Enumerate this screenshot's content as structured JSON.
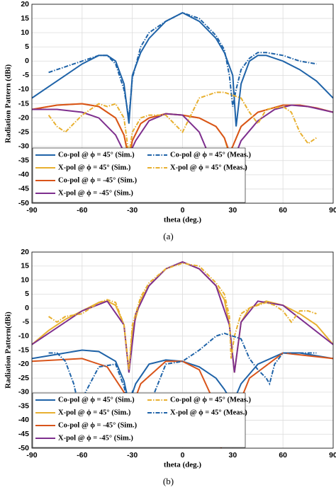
{
  "chart_data": [
    {
      "type": "line",
      "panel_label": "(a)",
      "x_label": "theta (deg.)",
      "y_label": "Radiation Pattern (dBi)",
      "xlim": [
        -90,
        90
      ],
      "xticks": [
        -90,
        -60,
        -30,
        0,
        30,
        60,
        90
      ],
      "ylim": [
        -50,
        20
      ],
      "yticks": [
        -50,
        -45,
        -40,
        -35,
        -30,
        -25,
        -20,
        -15,
        -10,
        -5,
        0,
        5,
        10,
        15,
        20
      ],
      "grid": true,
      "legend": "lower left",
      "series": [
        {
          "name": "Co-pol @ ϕ = 45° (Sim.)",
          "color": "#1f63a8",
          "linestyle": "solid",
          "x": [
            -90,
            -80,
            -70,
            -60,
            -50,
            -45,
            -40,
            -35,
            -32,
            -30,
            -25,
            -20,
            -10,
            0,
            10,
            20,
            25,
            30,
            32,
            35,
            40,
            45,
            50,
            60,
            70,
            80,
            90
          ],
          "values": [
            -13,
            -9,
            -5,
            -1,
            2,
            2,
            0,
            -8,
            -22,
            -5,
            3,
            8,
            14,
            17,
            14,
            8,
            3,
            -5,
            -23,
            -8,
            0,
            2,
            2,
            0,
            -3,
            -7,
            -13
          ]
        },
        {
          "name": "X-pol @ ϕ = 45° (Sim.)",
          "color": "#e8b030",
          "linestyle": "solid",
          "x": [
            -90,
            -75,
            -60,
            -50,
            -40,
            -35,
            -32,
            -30,
            -25,
            -20,
            -10,
            0,
            10,
            20,
            25,
            28,
            30,
            35,
            45,
            60,
            70,
            80,
            90
          ],
          "values": [
            -17,
            -15.5,
            -15,
            -16,
            -20,
            -26,
            -35,
            -28,
            -22,
            -20,
            -18.5,
            -19,
            -20,
            -23,
            -27,
            -33,
            -30,
            -23,
            -18,
            -15.5,
            -15.5,
            -16.5,
            -18
          ]
        },
        {
          "name": "Co-pol @ ϕ = -45° (Sim.)",
          "color": "#d9541a",
          "linestyle": "solid",
          "x": [
            -90,
            -75,
            -60,
            -50,
            -40,
            -35,
            -32,
            -30,
            -25,
            -20,
            -10,
            0,
            10,
            20,
            25,
            28,
            30,
            35,
            45,
            60,
            70,
            80,
            90
          ],
          "values": [
            -17,
            -15.5,
            -15,
            -16,
            -20,
            -26,
            -34,
            -28,
            -22,
            -20,
            -18.5,
            -19,
            -20,
            -23,
            -27,
            -32,
            -30,
            -23,
            -18,
            -15.5,
            -15.5,
            -16.5,
            -18
          ]
        },
        {
          "name": "X-pol @ ϕ = -45° (Sim.)",
          "color": "#7e2f8e",
          "linestyle": "solid",
          "x": [
            -90,
            -75,
            -60,
            -50,
            -40,
            -35,
            -32,
            -28,
            -20,
            -10,
            0,
            10,
            15,
            20,
            23,
            27,
            35,
            45,
            55,
            65,
            75,
            90
          ],
          "values": [
            -17,
            -17,
            -18,
            -20,
            -26,
            -32,
            -33,
            -28,
            -21,
            -18.5,
            -19,
            -25,
            -32,
            -40,
            -48,
            -40,
            -28,
            -21,
            -17,
            -15.5,
            -16,
            -18
          ]
        },
        {
          "name": "Co-pol @ ϕ = 45° (Meas.)",
          "color": "#1f63a8",
          "linestyle": "dashed",
          "x": [
            -80,
            -70,
            -60,
            -50,
            -45,
            -40,
            -35,
            -32,
            -30,
            -25,
            -20,
            -10,
            0,
            10,
            20,
            25,
            28,
            30,
            32,
            35,
            40,
            45,
            50,
            60,
            70,
            80
          ],
          "values": [
            -4,
            -2,
            0,
            2,
            2,
            -1,
            -10,
            -20,
            -6,
            5,
            10,
            14,
            17,
            15,
            9,
            4,
            -5,
            -16,
            -10,
            -3,
            1,
            3,
            3,
            2,
            0,
            -1
          ]
        },
        {
          "name": "X-pol @ ϕ = 45° (Meas.)",
          "color": "#e8b030",
          "linestyle": "dashed",
          "x": [
            -80,
            -75,
            -70,
            -65,
            -60,
            -50,
            -45,
            -40,
            -35,
            -32,
            -30,
            -25,
            -20,
            -10,
            -5,
            0,
            5,
            10,
            20,
            25,
            30,
            35,
            40,
            45,
            50,
            60,
            65,
            70,
            75,
            80
          ],
          "values": [
            -19,
            -23,
            -25,
            -22,
            -19,
            -15,
            -16,
            -15,
            -20,
            -33,
            -25,
            -20,
            -19,
            -19,
            -22,
            -25,
            -19,
            -13,
            -11,
            -11,
            -12,
            -13,
            -18,
            -22,
            -17,
            -16,
            -18,
            -25,
            -29,
            -27
          ]
        }
      ]
    },
    {
      "type": "line",
      "panel_label": "(b)",
      "x_label": "theta (deg.)",
      "y_label": "Radiation Pattern(dBi)",
      "xlim": [
        -90,
        90
      ],
      "xticks": [
        -90,
        -60,
        -30,
        0,
        30,
        60,
        90
      ],
      "ylim": [
        -50,
        20
      ],
      "yticks": [
        -50,
        -45,
        -40,
        -35,
        -30,
        -25,
        -20,
        -15,
        -10,
        -5,
        0,
        5,
        10,
        15,
        20
      ],
      "grid": true,
      "legend": "lower left",
      "series": [
        {
          "name": "Co-pol @ ϕ = 45° (Sim.)",
          "color": "#1f63a8",
          "linestyle": "solid",
          "x": [
            -90,
            -60,
            -50,
            -40,
            -35,
            -32,
            -28,
            -20,
            -10,
            0,
            10,
            20,
            25,
            30,
            35,
            45,
            60,
            70,
            90
          ],
          "values": [
            -18,
            -15,
            -15.5,
            -19,
            -26,
            -34,
            -27,
            -20,
            -18.5,
            -19,
            -21,
            -25,
            -29,
            -34,
            -27,
            -20,
            -16,
            -16,
            -18
          ]
        },
        {
          "name": "X-pol @ ϕ = 45° (Sim.)",
          "color": "#e8b030",
          "linestyle": "solid",
          "x": [
            -90,
            -80,
            -70,
            -60,
            -50,
            -45,
            -40,
            -35,
            -32,
            -30,
            -25,
            -20,
            -10,
            0,
            10,
            20,
            25,
            28,
            31,
            35,
            40,
            50,
            60,
            70,
            80,
            90
          ],
          "values": [
            -13,
            -8,
            -4,
            -1,
            2,
            2.5,
            1,
            -6,
            -23,
            -8,
            3,
            8,
            14,
            16.5,
            14,
            8,
            3,
            -6,
            -23,
            -5,
            0,
            2.5,
            1,
            -2,
            -6,
            -13
          ]
        },
        {
          "name": "Co-pol @ ϕ = -45° (Sim.)",
          "color": "#d9541a",
          "linestyle": "solid",
          "x": [
            -90,
            -60,
            -45,
            -35,
            -30,
            -25,
            -10,
            0,
            10,
            20,
            23,
            26,
            30,
            40,
            60,
            90
          ],
          "values": [
            -19,
            -18,
            -21,
            -30,
            -35,
            -27,
            -19,
            -19,
            -22,
            -35,
            -50,
            -45,
            -40,
            -25,
            -16,
            -18
          ]
        },
        {
          "name": "X-pol @ ϕ = -45° (Sim.)",
          "color": "#7e2f8e",
          "linestyle": "solid",
          "x": [
            -90,
            -60,
            -45,
            -35,
            -32,
            -28,
            -20,
            -10,
            0,
            10,
            20,
            28,
            31,
            35,
            45,
            60,
            90
          ],
          "values": [
            -13,
            -1,
            2.5,
            -6,
            -23,
            -2,
            8,
            14,
            16.5,
            14,
            8,
            -6,
            -23,
            -5,
            2.5,
            1,
            -13
          ]
        },
        {
          "name": "Co-pol @ ϕ = 45° (Meas.)",
          "color": "#e8b030",
          "linestyle": "dashed",
          "x": [
            -80,
            -75,
            -70,
            -60,
            -50,
            -45,
            -40,
            -35,
            -32,
            -30,
            -25,
            -20,
            -10,
            0,
            10,
            20,
            25,
            28,
            29,
            31,
            35,
            40,
            50,
            55,
            60,
            65,
            70,
            75,
            80
          ],
          "values": [
            -3,
            -5,
            -3,
            -2,
            2,
            3,
            2,
            -6,
            -22,
            -6,
            4,
            9,
            14,
            16,
            15,
            9,
            5,
            -3,
            -18,
            -10,
            -2,
            0,
            2,
            1,
            -1,
            -5,
            -1,
            -1,
            -2
          ]
        },
        {
          "name": "X-pol @ ϕ = 45° (Meas.)",
          "color": "#1f63a8",
          "linestyle": "dashed",
          "x": [
            -80,
            -75,
            -70,
            -65,
            -62,
            -60,
            -58,
            -50,
            -40,
            -35,
            -32,
            -30,
            -25,
            -22,
            -20,
            -10,
            0,
            5,
            10,
            20,
            25,
            30,
            35,
            40,
            45,
            50,
            52,
            55,
            60,
            70,
            80
          ],
          "values": [
            -16,
            -16,
            -19,
            -27,
            -35,
            -37,
            -30,
            -21,
            -20,
            -28,
            -35,
            -30,
            -37,
            -45,
            -35,
            -20,
            -19,
            -17,
            -15,
            -10,
            -9,
            -10,
            -11,
            -18,
            -22,
            -25,
            -27,
            -20,
            -16,
            -16,
            -16
          ]
        }
      ]
    }
  ]
}
